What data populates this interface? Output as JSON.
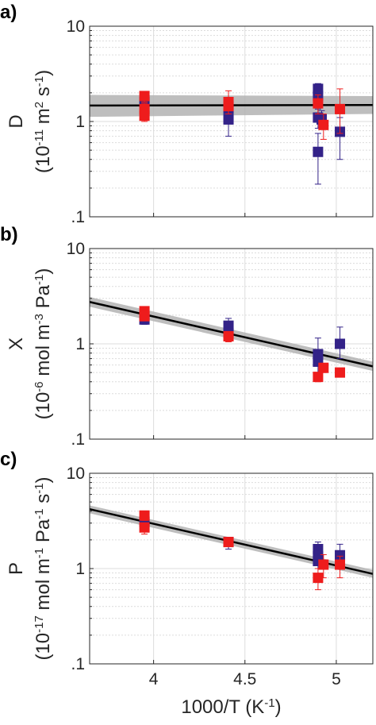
{
  "colors": {
    "blue": "#332288",
    "red": "#ee1c1c",
    "fit": "#000000",
    "band": "#b3b3b3",
    "grid": "#dcdcdc",
    "axis": "#262626"
  },
  "xlabel": {
    "main": "1000/T (K",
    "sup": "-1",
    "end": ")"
  },
  "chart_data": [
    {
      "type": "scatter",
      "panel_label": "a)",
      "ylabel_line1": "D",
      "ylabel_line2": [
        {
          "t": "(10"
        },
        {
          "t": "-11",
          "sup": true
        },
        {
          "t": " m"
        },
        {
          "t": "2",
          "sup": true
        },
        {
          "t": " s"
        },
        {
          "t": "-1",
          "sup": true
        },
        {
          "t": ")"
        }
      ],
      "yscale": "log",
      "ylim": [
        0.1,
        10
      ],
      "xlim": [
        3.65,
        5.2
      ],
      "yticklabels": [
        "10",
        "1",
        ".1"
      ],
      "xticklabels": [
        "4",
        "4.5",
        "5"
      ],
      "show_xticklabels": false,
      "grid": true,
      "fit": {
        "x": [
          3.65,
          5.2
        ],
        "y": [
          1.47,
          1.49
        ],
        "band_lo": [
          1.12,
          1.2
        ],
        "band_hi": [
          1.9,
          1.85
        ]
      },
      "series": [
        {
          "color": "blue",
          "points": [
            {
              "x": 3.95,
              "y": 1.6,
              "lo": 1.35,
              "hi": 1.85
            },
            {
              "x": 4.41,
              "y": 1.35,
              "lo": 1.15,
              "hi": 1.55
            },
            {
              "x": 4.41,
              "y": 1.05,
              "lo": 0.7,
              "hi": 1.3
            },
            {
              "x": 4.9,
              "y": 2.2,
              "lo": 1.95,
              "hi": 2.5
            },
            {
              "x": 4.9,
              "y": 1.85,
              "lo": 1.55,
              "hi": 2.1
            },
            {
              "x": 4.9,
              "y": 1.1,
              "lo": 0.85,
              "hi": 1.35
            },
            {
              "x": 4.9,
              "y": 0.48,
              "lo": 0.22,
              "hi": 0.75
            },
            {
              "x": 4.92,
              "y": 1.05,
              "lo": 0.85,
              "hi": 1.3
            },
            {
              "x": 5.02,
              "y": 0.78,
              "lo": 0.4,
              "hi": 1.1
            }
          ]
        },
        {
          "color": "red",
          "points": [
            {
              "x": 3.95,
              "y": 1.85,
              "lo": 1.6,
              "hi": 2.0
            },
            {
              "x": 3.95,
              "y": 1.35,
              "lo": 1.15,
              "hi": 1.55
            },
            {
              "x": 3.95,
              "y": 1.15,
              "lo": 1.0,
              "hi": 1.3
            },
            {
              "x": 4.41,
              "y": 1.6,
              "lo": 1.2,
              "hi": 2.1
            },
            {
              "x": 4.41,
              "y": 1.45,
              "lo": 1.2,
              "hi": 1.7
            },
            {
              "x": 4.9,
              "y": 1.55,
              "lo": 1.2,
              "hi": 1.9
            },
            {
              "x": 4.93,
              "y": 0.92,
              "lo": 0.65,
              "hi": 1.2
            },
            {
              "x": 5.02,
              "y": 1.35,
              "lo": 0.75,
              "hi": 2.2
            }
          ]
        }
      ]
    },
    {
      "type": "scatter",
      "panel_label": "b)",
      "ylabel_line1": "X",
      "ylabel_line2": [
        {
          "t": "(10"
        },
        {
          "t": "-6",
          "sup": true
        },
        {
          "t": " mol m"
        },
        {
          "t": "-3",
          "sup": true
        },
        {
          "t": " Pa"
        },
        {
          "t": "-1",
          "sup": true
        },
        {
          "t": ")"
        }
      ],
      "yscale": "log",
      "ylim": [
        0.1,
        10
      ],
      "xlim": [
        3.65,
        5.2
      ],
      "yticklabels": [
        "10",
        "1",
        ".1"
      ],
      "xticklabels": [
        "4",
        "4.5",
        "5"
      ],
      "show_xticklabels": false,
      "grid": true,
      "fit": {
        "x": [
          3.65,
          5.2
        ],
        "y": [
          2.75,
          0.58
        ],
        "band_lo": [
          2.45,
          0.52
        ],
        "band_hi": [
          3.1,
          0.65
        ]
      },
      "series": [
        {
          "color": "blue",
          "points": [
            {
              "x": 3.95,
              "y": 1.8,
              "lo": 1.6,
              "hi": 2.0
            },
            {
              "x": 4.41,
              "y": 1.55,
              "lo": 1.35,
              "hi": 1.85
            },
            {
              "x": 4.41,
              "y": 1.3,
              "lo": 1.1,
              "hi": 1.5
            },
            {
              "x": 4.9,
              "y": 0.78,
              "lo": 0.6,
              "hi": 1.15
            },
            {
              "x": 4.9,
              "y": 0.65,
              "lo": 0.5,
              "hi": 0.8
            },
            {
              "x": 5.02,
              "y": 1.0,
              "lo": 0.7,
              "hi": 1.5
            }
          ]
        },
        {
          "color": "red",
          "points": [
            {
              "x": 3.95,
              "y": 2.2,
              "lo": 2.0,
              "hi": 2.4
            },
            {
              "x": 3.95,
              "y": 1.95,
              "lo": 1.75,
              "hi": 2.2
            },
            {
              "x": 4.41,
              "y": 1.2,
              "lo": 1.05,
              "hi": 1.35
            },
            {
              "x": 4.9,
              "y": 0.45,
              "lo": 0.4,
              "hi": 0.5
            },
            {
              "x": 4.93,
              "y": 0.56,
              "lo": 0.5,
              "hi": 0.62
            },
            {
              "x": 5.02,
              "y": 0.5,
              "lo": 0.45,
              "hi": 0.55
            }
          ]
        }
      ]
    },
    {
      "type": "scatter",
      "panel_label": "c)",
      "ylabel_line1": "P",
      "ylabel_line2": [
        {
          "t": "(10"
        },
        {
          "t": "-17",
          "sup": true
        },
        {
          "t": " mol m"
        },
        {
          "t": "-1",
          "sup": true
        },
        {
          "t": " Pa"
        },
        {
          "t": "-1",
          "sup": true
        },
        {
          "t": " s"
        },
        {
          "t": "-1",
          "sup": true
        },
        {
          "t": ")"
        }
      ],
      "yscale": "log",
      "ylim": [
        0.1,
        10
      ],
      "xlim": [
        3.65,
        5.2
      ],
      "yticklabels": [
        "10",
        "1",
        ".1"
      ],
      "xticklabels": [
        "4",
        "4.5",
        "5"
      ],
      "show_xticklabels": true,
      "grid": true,
      "fit": {
        "x": [
          3.65,
          5.2
        ],
        "y": [
          4.2,
          0.88
        ],
        "band_lo": [
          3.8,
          0.8
        ],
        "band_hi": [
          4.6,
          0.97
        ]
      },
      "series": [
        {
          "color": "blue",
          "points": [
            {
              "x": 3.95,
              "y": 3.1,
              "lo": 2.5,
              "hi": 3.6
            },
            {
              "x": 4.41,
              "y": 1.9,
              "lo": 1.6,
              "hi": 2.1
            },
            {
              "x": 4.9,
              "y": 1.6,
              "lo": 1.3,
              "hi": 1.9
            },
            {
              "x": 4.9,
              "y": 1.35,
              "lo": 1.1,
              "hi": 1.6
            },
            {
              "x": 4.9,
              "y": 1.2,
              "lo": 1.0,
              "hi": 1.4
            },
            {
              "x": 5.02,
              "y": 1.38,
              "lo": 1.0,
              "hi": 1.8
            }
          ]
        },
        {
          "color": "red",
          "points": [
            {
              "x": 3.95,
              "y": 3.6,
              "lo": 3.2,
              "hi": 4.0
            },
            {
              "x": 3.95,
              "y": 2.7,
              "lo": 2.3,
              "hi": 3.0
            },
            {
              "x": 4.41,
              "y": 1.9,
              "lo": 1.7,
              "hi": 2.1
            },
            {
              "x": 4.9,
              "y": 0.8,
              "lo": 0.6,
              "hi": 1.0
            },
            {
              "x": 4.93,
              "y": 1.1,
              "lo": 0.8,
              "hi": 1.4
            },
            {
              "x": 5.02,
              "y": 1.1,
              "lo": 0.8,
              "hi": 1.35
            }
          ]
        }
      ]
    }
  ]
}
